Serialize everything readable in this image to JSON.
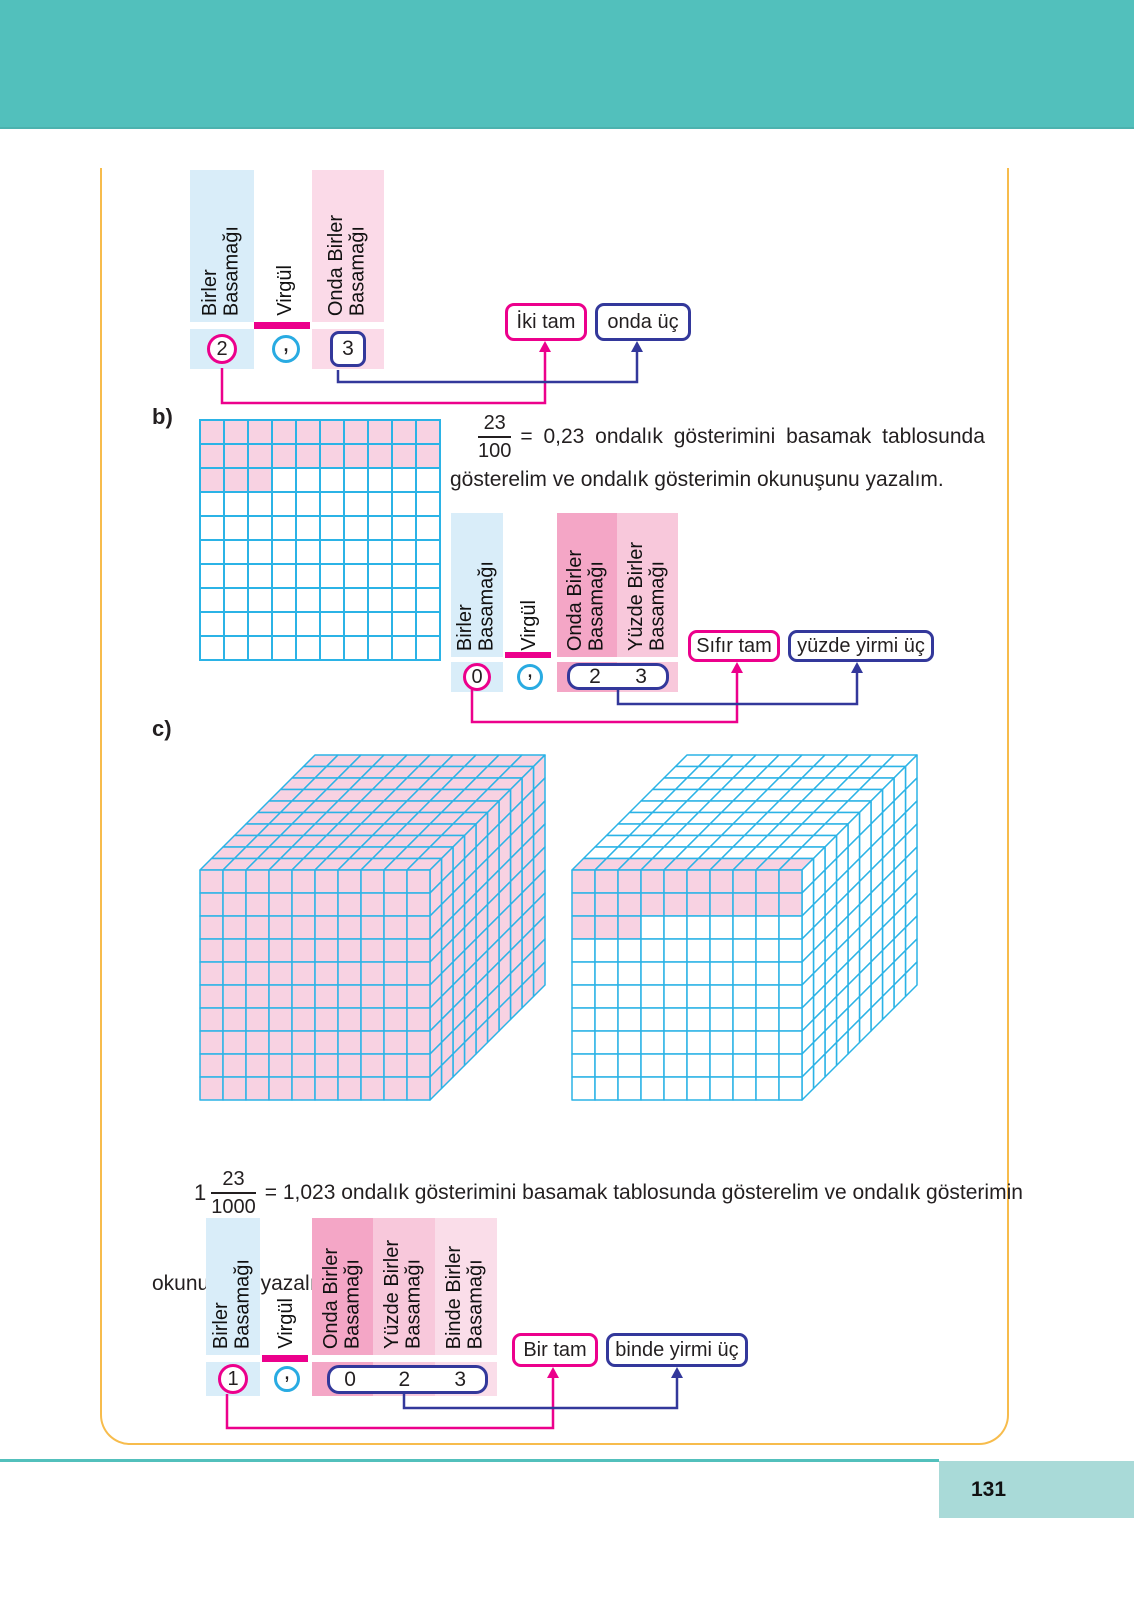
{
  "page": {
    "number": "131"
  },
  "colors": {
    "teal": "#52C0BC",
    "page_band": "#A9DAD8",
    "frame": "#F7BC4C",
    "magenta": "#EC008C",
    "indigo": "#33389B",
    "cyan": "#29ABE2",
    "grid_line": "#2BB3E6",
    "col_blue": "#D9EDF9",
    "col_pink": "#FBDAE8",
    "col_pink_med": "#F4A6C6",
    "col_pink_light": "#F8C8DB",
    "col_pink_lighter": "#FADDE9",
    "cell_pink": "#F8D2E2",
    "ink": "#231F20"
  },
  "section_a": {
    "table": {
      "birler": {
        "line1": "Birler",
        "line2": "Basamağı",
        "value": "2"
      },
      "virgul": {
        "label": "Virgül",
        "value": ","
      },
      "onda": {
        "line1": "Onda Birler",
        "line2": "Basamağı",
        "value": "3"
      }
    },
    "reading": {
      "whole": "İki tam",
      "part": "onda üç"
    }
  },
  "section_b": {
    "label": "b)",
    "grid": {
      "rows": 10,
      "cols": 10,
      "shaded_cells": 23
    },
    "equation": {
      "numerator": "23",
      "denominator": "100",
      "text": "= 0,23 ondalık gösterimini basamak tablosunda",
      "text2": "gösterelim ve ondalık gösterimin okunuşunu yazalım."
    },
    "table": {
      "birler": {
        "line1": "Birler",
        "line2": "Basamağı",
        "value": "0"
      },
      "virgul": {
        "label": "Virgül",
        "value": ","
      },
      "onda": {
        "line1": "Onda Birler",
        "line2": "Basamağı",
        "value": "2"
      },
      "yuzde": {
        "line1": "Yüzde Birler",
        "line2": "Basamağı",
        "value": "3"
      }
    },
    "reading": {
      "whole": "Sıfır tam",
      "part": "yüzde yirmi üç"
    }
  },
  "section_c": {
    "label": "c)",
    "cubes": [
      {
        "name": "cube-full",
        "shaded_units": 1000,
        "total_units": 1000
      },
      {
        "name": "cube-partial",
        "shaded_units": 23,
        "total_units": 1000
      }
    ],
    "equation": {
      "whole": "1",
      "numerator": "23",
      "denominator": "1000",
      "text": "= 1,023 ondalık gösterimini basamak tablosunda gösterelim ve ondalık gösterimin",
      "text2": "okunuşunu yazalım."
    },
    "table": {
      "birler": {
        "line1": "Birler",
        "line2": "Basamağı",
        "value": "1"
      },
      "virgul": {
        "label": "Virgül",
        "value": ","
      },
      "onda": {
        "line1": "Onda Birler",
        "line2": "Basamağı",
        "value": "0"
      },
      "yuzde": {
        "line1": "Yüzde Birler",
        "line2": "Basamağı",
        "value": "2"
      },
      "binde": {
        "line1": "Binde Birler",
        "line2": "Basamağı",
        "value": "3"
      }
    },
    "reading": {
      "whole": "Bir tam",
      "part": "binde yirmi üç"
    }
  }
}
